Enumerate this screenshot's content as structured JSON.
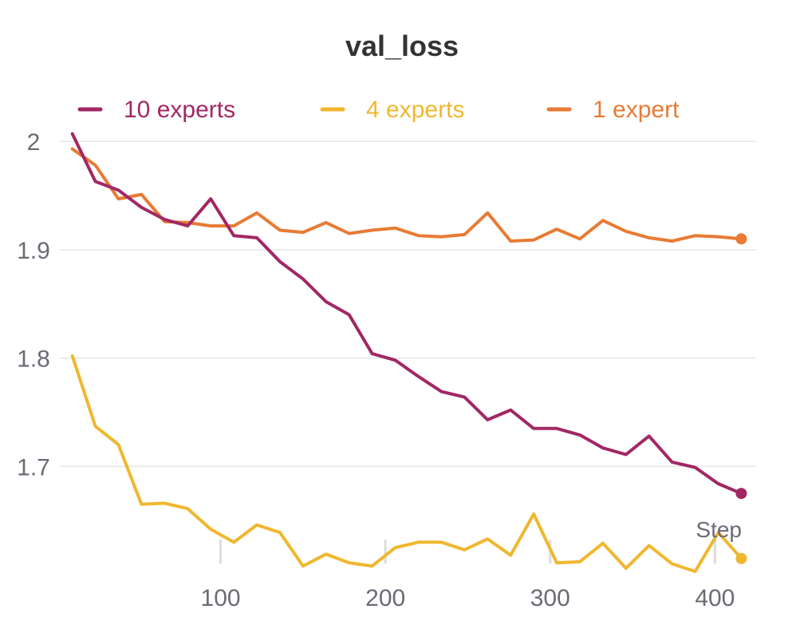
{
  "chart_data": {
    "type": "line",
    "title": "val_loss",
    "xlabel": "Step",
    "ylabel": "",
    "xlim": [
      0,
      425
    ],
    "ylim": [
      1.6,
      2.02
    ],
    "x_ticks": [
      100,
      200,
      300,
      400
    ],
    "y_ticks": [
      1.7,
      1.8,
      1.9,
      2
    ],
    "grid": true,
    "legend_position": "top",
    "x": [
      10,
      24,
      38,
      52,
      66,
      80,
      94,
      108,
      122,
      136,
      150,
      164,
      178,
      192,
      206,
      220,
      234,
      248,
      262,
      276,
      290,
      304,
      318,
      332,
      346,
      360,
      374,
      388,
      402,
      416
    ],
    "series": [
      {
        "name": "10 experts",
        "color": "#a12864",
        "values": [
          2.007,
          1.963,
          1.955,
          1.939,
          1.928,
          1.922,
          1.947,
          1.913,
          1.911,
          1.889,
          1.873,
          1.852,
          1.84,
          1.804,
          1.798,
          1.783,
          1.769,
          1.764,
          1.743,
          1.752,
          1.735,
          1.735,
          1.729,
          1.717,
          1.711,
          1.728,
          1.704,
          1.699,
          1.684,
          1.675
        ]
      },
      {
        "name": "4 experts",
        "color": "#f0b72f",
        "values": [
          1.802,
          1.737,
          1.72,
          1.665,
          1.666,
          1.661,
          1.642,
          1.63,
          1.646,
          1.639,
          1.608,
          1.619,
          1.611,
          1.608,
          1.625,
          1.63,
          1.63,
          1.623,
          1.633,
          1.618,
          1.656,
          1.611,
          1.612,
          1.629,
          1.606,
          1.627,
          1.61,
          1.603,
          1.639,
          1.615
        ]
      },
      {
        "name": "1 expert",
        "color": "#e87b35",
        "values": [
          1.993,
          1.978,
          1.947,
          1.951,
          1.926,
          1.925,
          1.922,
          1.922,
          1.934,
          1.918,
          1.916,
          1.925,
          1.915,
          1.918,
          1.92,
          1.913,
          1.912,
          1.914,
          1.934,
          1.908,
          1.909,
          1.919,
          1.91,
          1.927,
          1.917,
          1.911,
          1.908,
          1.913,
          1.912,
          1.91
        ]
      }
    ]
  }
}
